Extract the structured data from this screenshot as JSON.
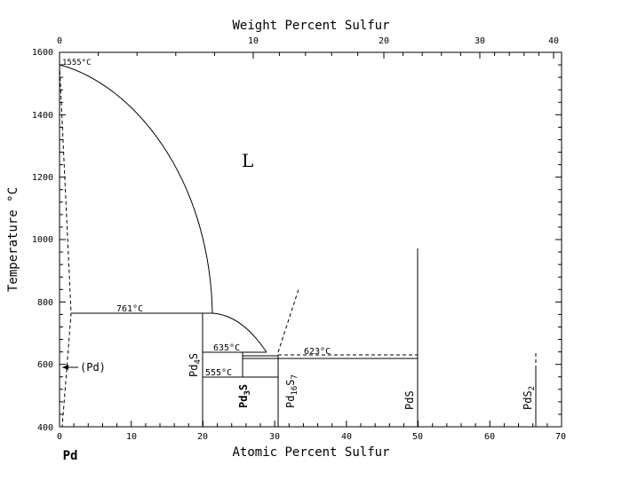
{
  "top_axis": {
    "title": "Weight Percent Sulfur",
    "ticks": [
      "0",
      "10",
      "20",
      "30",
      "40"
    ]
  },
  "bottom_axis": {
    "title": "Atomic Percent Sulfur",
    "ticks": [
      "0",
      "10",
      "20",
      "30",
      "40",
      "50",
      "60",
      "70"
    ],
    "end_component": "Pd"
  },
  "y_axis": {
    "title": "Temperature °C",
    "ticks": [
      "400",
      "600",
      "800",
      "1000",
      "1200",
      "1400",
      "1600"
    ],
    "range": [
      400,
      1600
    ]
  },
  "labels": {
    "liquid": "L",
    "pd_solid": "(Pd)",
    "melting_point": "1555°C",
    "eutectic_761": "761°C",
    "temp_635": "635°C",
    "temp_623": "623°C",
    "temp_555": "555°C"
  },
  "phases": {
    "pd4s": {
      "main": "Pd",
      "sub": "4",
      "tail": "S"
    },
    "pd3s": {
      "main": "Pd",
      "sub": "3",
      "tail": "S"
    },
    "pd16s7": {
      "main": "Pd",
      "sub": "16",
      "tail": "S",
      "sub2": "7"
    },
    "pds": {
      "main": "PdS"
    },
    "pds2": {
      "main": "PdS",
      "sub": "2"
    }
  },
  "chart_data": {
    "type": "phase-diagram",
    "x_range_atomic": [
      0,
      70
    ],
    "x_range_weight": [
      0,
      40
    ],
    "y_range": [
      400,
      1600
    ],
    "invariants_C": [
      1555,
      761,
      635,
      623,
      555
    ],
    "compounds_atomic_percent_S": {
      "Pd4S": 20,
      "Pd3S": 25,
      "Pd16S7": 30.4,
      "PdS": 50,
      "PdS2": 66.7
    }
  }
}
